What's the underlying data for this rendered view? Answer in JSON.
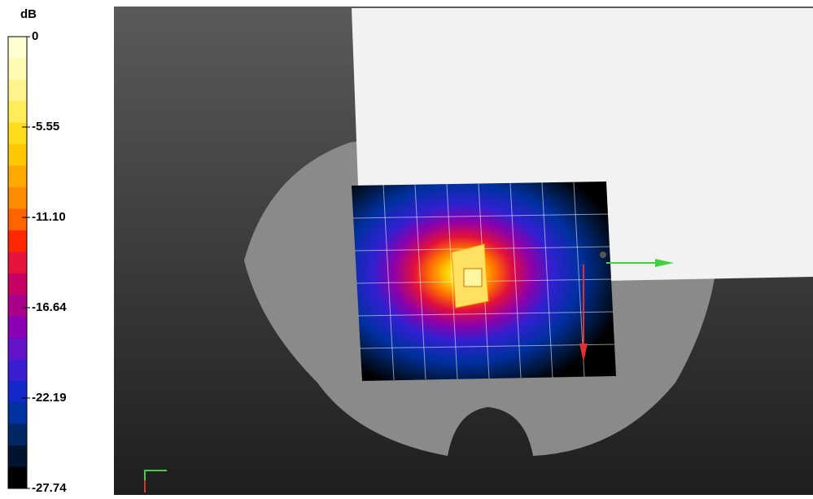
{
  "colorbar": {
    "unit": "dB",
    "ticks": [
      0,
      -5.55,
      {
        "value": -11.1,
        "label": "-11.10"
      },
      -16.64,
      -22.19,
      -27.74
    ],
    "colors": [
      "#ffffd2",
      "#fffab4",
      "#fff58c",
      "#ffec5a",
      "#ffdc1e",
      "#ffc800",
      "#ffa800",
      "#ff8c00",
      "#ff6400",
      "#ff2800",
      "#e6143c",
      "#c80064",
      "#aa008c",
      "#8c00b4",
      "#6414c8",
      "#3c1ed2",
      "#1428c8",
      "#0032a0",
      "#002864",
      "#001432",
      "#000000"
    ]
  }
}
